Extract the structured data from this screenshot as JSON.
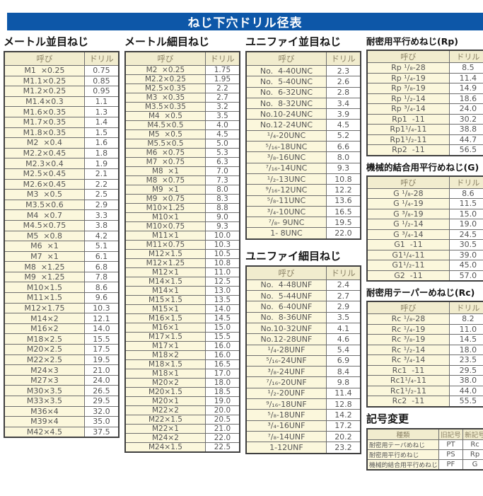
{
  "title": "ねじ下穴ドリル径表",
  "labels": {
    "name": "呼び",
    "drill": "ドリル"
  },
  "colors": {
    "title_bar_bg": "#0d57a8",
    "title_text": "#ffffff",
    "header_cell_bg": "#f1ecce",
    "name_cell_bg": "#fbf7dc",
    "value_cell_bg": "#ffffff",
    "border": "#3f3f3f"
  },
  "sections": {
    "metric_coarse": {
      "title": "メートル並目ねじ",
      "rows": [
        [
          "M1  ×0.25",
          "0.75"
        ],
        [
          "M1.1×0.25",
          "0.85"
        ],
        [
          "M1.2×0.25",
          "0.95"
        ],
        [
          "M1.4×0.3",
          "1.1"
        ],
        [
          "M1.6×0.35",
          "1.3"
        ],
        [
          "M1.7×0.35",
          "1.4"
        ],
        [
          "M1.8×0.35",
          "1.5"
        ],
        [
          "M2  ×0.4",
          "1.6"
        ],
        [
          "M2.2×0.45",
          "1.8"
        ],
        [
          "M2.3×0.4",
          "1.9"
        ],
        [
          "M2.5×0.45",
          "2.1"
        ],
        [
          "M2.6×0.45",
          "2.2"
        ],
        [
          "M3  ×0.5",
          "2.5"
        ],
        [
          "M3.5×0.6",
          "2.9"
        ],
        [
          "M4  ×0.7",
          "3.3"
        ],
        [
          "M4.5×0.75",
          "3.8"
        ],
        [
          "M5  ×0.8",
          "4.2"
        ],
        [
          "M6  ×1",
          "5.1"
        ],
        [
          "M7  ×1",
          "6.1"
        ],
        [
          "M8  ×1.25",
          "6.8"
        ],
        [
          "M9  ×1.25",
          "7.8"
        ],
        [
          "M10×1.5",
          "8.6"
        ],
        [
          "M11×1.5",
          "9.6"
        ],
        [
          "M12×1.75",
          "10.3"
        ],
        [
          "M14×2",
          "12.1"
        ],
        [
          "M16×2",
          "14.0"
        ],
        [
          "M18×2.5",
          "15.5"
        ],
        [
          "M20×2.5",
          "17.5"
        ],
        [
          "M22×2.5",
          "19.5"
        ],
        [
          "M24×3",
          "21.0"
        ],
        [
          "M27×3",
          "24.0"
        ],
        [
          "M30×3.5",
          "26.5"
        ],
        [
          "M33×3.5",
          "29.5"
        ],
        [
          "M36×4",
          "32.0"
        ],
        [
          "M39×4",
          "35.0"
        ],
        [
          "M42×4.5",
          "37.5"
        ]
      ]
    },
    "metric_fine": {
      "title": "メートル細目ねじ",
      "rows": [
        [
          "M2  ×0.25",
          "1.75"
        ],
        [
          "M2.2×0.25",
          "1.95"
        ],
        [
          "M2.5×0.35",
          "2.2"
        ],
        [
          "M3  ×0.35",
          "2.7"
        ],
        [
          "M3.5×0.35",
          "3.2"
        ],
        [
          "M4  ×0.5",
          "3.5"
        ],
        [
          "M4.5×0.5",
          "4.0"
        ],
        [
          "M5  ×0.5",
          "4.5"
        ],
        [
          "M5.5×0.5",
          "5.0"
        ],
        [
          "M6  ×0.75",
          "5.3"
        ],
        [
          "M7  ×0.75",
          "6.3"
        ],
        [
          "M8  ×1",
          "7.0"
        ],
        [
          "M8  ×0.75",
          "7.3"
        ],
        [
          "M9  ×1",
          "8.0"
        ],
        [
          "M9  ×0.75",
          "8.3"
        ],
        [
          "M10×1.25",
          "8.8"
        ],
        [
          "M10×1",
          "9.0"
        ],
        [
          "M10×0.75",
          "9.3"
        ],
        [
          "M11×1",
          "10.0"
        ],
        [
          "M11×0.75",
          "10.3"
        ],
        [
          "M12×1.5",
          "10.5"
        ],
        [
          "M12×1.25",
          "10.8"
        ],
        [
          "M12×1",
          "11.0"
        ],
        [
          "M14×1.5",
          "12.5"
        ],
        [
          "M14×1",
          "13.0"
        ],
        [
          "M15×1.5",
          "13.5"
        ],
        [
          "M15×1",
          "14.0"
        ],
        [
          "M16×1.5",
          "14.5"
        ],
        [
          "M16×1",
          "15.0"
        ],
        [
          "M17×1.5",
          "15.5"
        ],
        [
          "M17×1",
          "16.0"
        ],
        [
          "M18×2",
          "16.0"
        ],
        [
          "M18×1.5",
          "16.5"
        ],
        [
          "M18×1",
          "17.0"
        ],
        [
          "M20×2",
          "18.0"
        ],
        [
          "M20×1.5",
          "18.5"
        ],
        [
          "M20×1",
          "19.0"
        ],
        [
          "M22×2",
          "20.0"
        ],
        [
          "M22×1.5",
          "20.5"
        ],
        [
          "M22×1",
          "21.0"
        ],
        [
          "M24×2",
          "22.0"
        ],
        [
          "M24×1.5",
          "22.5"
        ]
      ]
    },
    "unified_coarse": {
      "title": "ユニファイ並目ねじ",
      "rows": [
        [
          "No.  4-40UNC",
          "2.3"
        ],
        [
          "No.  5-40UNC",
          "2.6"
        ],
        [
          "No.  6-32UNC",
          "2.8"
        ],
        [
          "No.  8-32UNC",
          "3.4"
        ],
        [
          "No.10-24UNC",
          "3.9"
        ],
        [
          "No.12-24UNC",
          "4.5"
        ],
        [
          "¹/₄-20UNC",
          "5.2"
        ],
        [
          "⁵/₁₆-18UNC",
          "6.6"
        ],
        [
          "³/₈-16UNC",
          "8.0"
        ],
        [
          "⁷/₁₆-14UNC",
          "9.3"
        ],
        [
          "¹/₂-13UNC",
          "10.8"
        ],
        [
          "⁹/₁₆-12UNC",
          "12.2"
        ],
        [
          "⁵/₈-11UNC",
          "13.6"
        ],
        [
          "³/₄-10UNC",
          "16.5"
        ],
        [
          "⁷/₈- 9UNC",
          "19.5"
        ],
        [
          "1- 8UNC",
          "22.0"
        ]
      ]
    },
    "unified_fine": {
      "title": "ユニファイ細目ねじ",
      "rows": [
        [
          "No.  4-48UNF",
          "2.4"
        ],
        [
          "No.  5-44UNF",
          "2.7"
        ],
        [
          "No.  6-40UNF",
          "2.9"
        ],
        [
          "No.  8-36UNF",
          "3.5"
        ],
        [
          "No.10-32UNF",
          "4.1"
        ],
        [
          "No.12-28UNF",
          "4.6"
        ],
        [
          "¹/₄-28UNF",
          "5.4"
        ],
        [
          "⁵/₁₆-24UNF",
          "6.9"
        ],
        [
          "³/₈-24UNF",
          "8.4"
        ],
        [
          "⁷/₁₆-20UNF",
          "9.8"
        ],
        [
          "¹/₂-20UNF",
          "11.4"
        ],
        [
          "⁹/₁₆-18UNF",
          "12.8"
        ],
        [
          "⁵/₈-18UNF",
          "14.2"
        ],
        [
          "³/₄-16UNF",
          "17.2"
        ],
        [
          "⁷/₈-14UNF",
          "20.2"
        ],
        [
          "1-12UNF",
          "23.2"
        ]
      ]
    },
    "rp": {
      "title": "耐密用平行めねじ(Rp)",
      "rows": [
        [
          "Rp ¹/₈-28",
          "8.5"
        ],
        [
          "Rp ¹/₄-19",
          "11.4"
        ],
        [
          "Rp ³/₈-19",
          "14.9"
        ],
        [
          "Rp ¹/₂-14",
          "18.6"
        ],
        [
          "Rp ³/₄-14",
          "24.0"
        ],
        [
          "Rp1  -11",
          "30.2"
        ],
        [
          "Rp1¹/₄-11",
          "38.8"
        ],
        [
          "Rp1¹/₂-11",
          "44.7"
        ],
        [
          "Rp2  -11",
          "56.5"
        ]
      ]
    },
    "g": {
      "title": "機械的結合用平行めねじ(G)",
      "rows": [
        [
          "G ¹/₈-28",
          "8.6"
        ],
        [
          "G ¹/₄-19",
          "11.5"
        ],
        [
          "G ³/₈-19",
          "15.0"
        ],
        [
          "G ¹/₂-14",
          "19.0"
        ],
        [
          "G ³/₄-14",
          "24.5"
        ],
        [
          "G1  -11",
          "30.5"
        ],
        [
          "G1¹/₄-11",
          "39.0"
        ],
        [
          "G1¹/₂-11",
          "45.0"
        ],
        [
          "G2  -11",
          "57.0"
        ]
      ]
    },
    "rc": {
      "title": "耐密用テーパーめねじ(Rc)",
      "rows": [
        [
          "Rc ¹/₈-28",
          "8.2"
        ],
        [
          "Rc ¹/₄-19",
          "11.0"
        ],
        [
          "Rc ³/₈-19",
          "14.5"
        ],
        [
          "Rc ¹/₂-14",
          "18.0"
        ],
        [
          "Rc ³/₄-14",
          "23.5"
        ],
        [
          "Rc1  -11",
          "29.5"
        ],
        [
          "Rc1¹/₄-11",
          "38.0"
        ],
        [
          "Rc1¹/₂-11",
          "44.0"
        ],
        [
          "Rc2  -11",
          "55.5"
        ]
      ]
    }
  },
  "symbol_change": {
    "title": "記号変更",
    "headers": [
      "種類",
      "旧記号",
      "新記号"
    ],
    "rows": [
      [
        "耐密用テーパめねじ",
        "PT",
        "Rc"
      ],
      [
        "耐密用平行めねじ",
        "PS",
        "Rp"
      ],
      [
        "機械的結合用平行めねじ",
        "PF",
        "G"
      ]
    ]
  }
}
